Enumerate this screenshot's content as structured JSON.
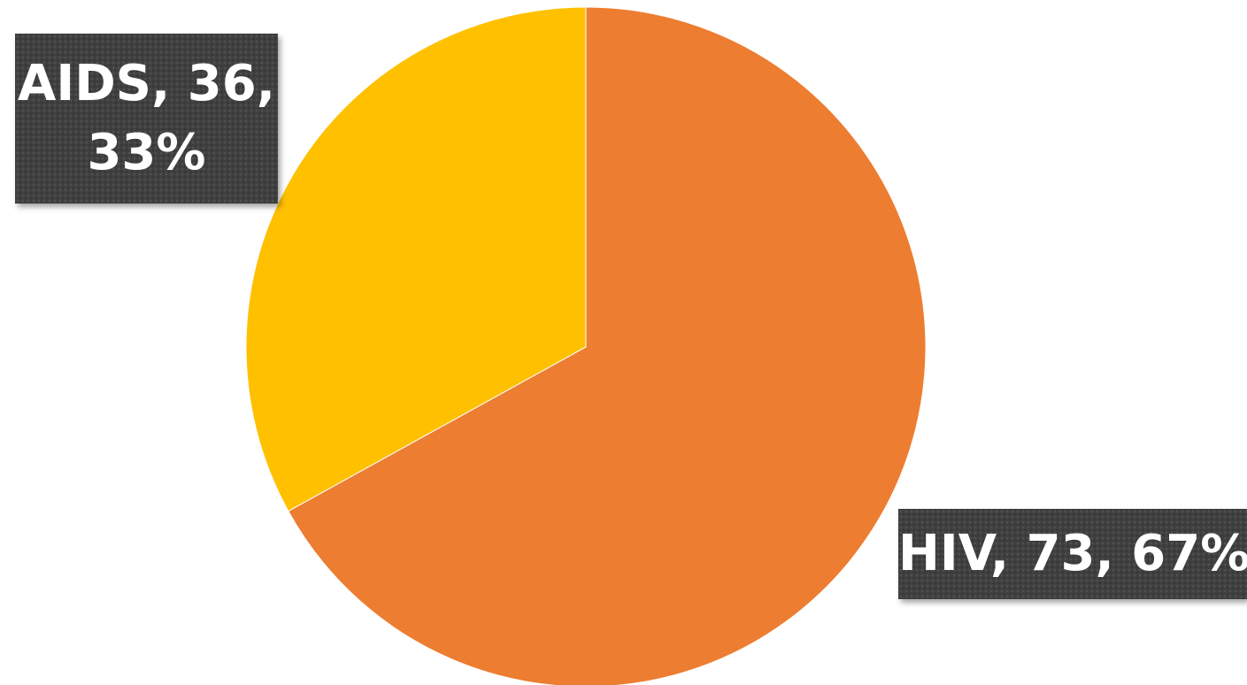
{
  "chart_data": {
    "type": "pie",
    "categories": [
      "HIV",
      "AIDS"
    ],
    "values": [
      73,
      36
    ],
    "percentages": [
      67,
      33
    ],
    "colors": [
      "#ED7D31",
      "#FFC000"
    ],
    "data_labels": [
      {
        "line1": "HIV, 73, 67%"
      },
      {
        "line1": "AIDS, 36,",
        "line2": "33%"
      }
    ],
    "start_angle_deg": 0,
    "direction": "clockwise"
  }
}
